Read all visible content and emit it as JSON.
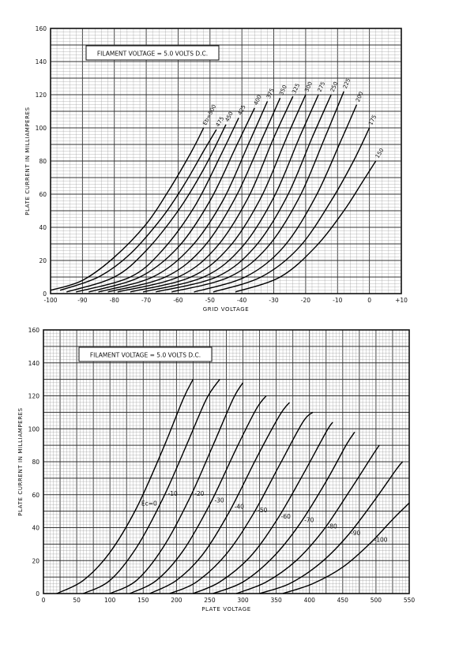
{
  "chart_data": [
    {
      "type": "line",
      "annotation": "FILAMENT VOLTAGE = 5.0 VOLTS D.C.",
      "xlabel": "GRID VOLTAGE",
      "ylabel": "PLATE CURRENT IN MILLIAMPERES",
      "xlim": [
        -100,
        10
      ],
      "ylim": [
        0,
        160
      ],
      "x_ticks": [
        "-100",
        "-90",
        "-80",
        "-70",
        "-60",
        "-50",
        "-40",
        "-30",
        "-20",
        "-10",
        "0",
        "+10"
      ],
      "y_ticks": [
        "0",
        "20",
        "40",
        "60",
        "80",
        "100",
        "120",
        "140",
        "160"
      ],
      "grid": true,
      "series": [
        {
          "name": "Eb=500",
          "points": [
            [
              -100,
              2
            ],
            [
              -90,
              8
            ],
            [
              -80,
              22
            ],
            [
              -70,
              42
            ],
            [
              -63,
              62
            ],
            [
              -56,
              85
            ],
            [
              -52,
              100
            ]
          ]
        },
        {
          "name": "475",
          "points": [
            [
              -97,
              2
            ],
            [
              -85,
              10
            ],
            [
              -75,
              24
            ],
            [
              -65,
              46
            ],
            [
              -58,
              66
            ],
            [
              -52,
              86
            ],
            [
              -48,
              99
            ]
          ]
        },
        {
          "name": "450",
          "points": [
            [
              -95,
              1
            ],
            [
              -80,
              10
            ],
            [
              -70,
              26
            ],
            [
              -60,
              50
            ],
            [
              -52,
              75
            ],
            [
              -45,
              102
            ]
          ]
        },
        {
          "name": "425",
          "points": [
            [
              -92,
              1
            ],
            [
              -75,
              10
            ],
            [
              -65,
              26
            ],
            [
              -55,
              52
            ],
            [
              -47,
              82
            ],
            [
              -41,
              106
            ]
          ]
        },
        {
          "name": "400",
          "points": [
            [
              -88,
              1
            ],
            [
              -72,
              10
            ],
            [
              -60,
              28
            ],
            [
              -50,
              56
            ],
            [
              -42,
              88
            ],
            [
              -36,
              112
            ]
          ]
        },
        {
          "name": "375",
          "points": [
            [
              -85,
              1
            ],
            [
              -68,
              10
            ],
            [
              -56,
              28
            ],
            [
              -46,
              56
            ],
            [
              -38,
              90
            ],
            [
              -32,
              116
            ]
          ]
        },
        {
          "name": "350",
          "points": [
            [
              -82,
              1
            ],
            [
              -64,
              10
            ],
            [
              -52,
              28
            ],
            [
              -42,
              58
            ],
            [
              -34,
              92
            ],
            [
              -28,
              118
            ]
          ]
        },
        {
          "name": "325",
          "points": [
            [
              -79,
              1
            ],
            [
              -60,
              10
            ],
            [
              -48,
              28
            ],
            [
              -38,
              58
            ],
            [
              -30,
              94
            ],
            [
              -24,
              119
            ]
          ]
        },
        {
          "name": "300",
          "points": [
            [
              -75,
              1
            ],
            [
              -56,
              10
            ],
            [
              -44,
              28
            ],
            [
              -34,
              58
            ],
            [
              -26,
              94
            ],
            [
              -20,
              120
            ]
          ]
        },
        {
          "name": "275",
          "points": [
            [
              -71,
              1
            ],
            [
              -52,
              10
            ],
            [
              -40,
              28
            ],
            [
              -30,
              58
            ],
            [
              -22,
              94
            ],
            [
              -16,
              120
            ]
          ]
        },
        {
          "name": "250",
          "points": [
            [
              -67,
              1
            ],
            [
              -48,
              10
            ],
            [
              -36,
              28
            ],
            [
              -26,
              58
            ],
            [
              -18,
              94
            ],
            [
              -12,
              120
            ]
          ]
        },
        {
          "name": "225",
          "points": [
            [
              -62,
              1
            ],
            [
              -44,
              10
            ],
            [
              -32,
              28
            ],
            [
              -22,
              58
            ],
            [
              -14,
              94
            ],
            [
              -8,
              122
            ]
          ]
        },
        {
          "name": "200",
          "points": [
            [
              -55,
              1
            ],
            [
              -39,
              10
            ],
            [
              -27,
              28
            ],
            [
              -17,
              58
            ],
            [
              -9,
              92
            ],
            [
              -4,
              114
            ]
          ]
        },
        {
          "name": "175",
          "points": [
            [
              -49,
              1
            ],
            [
              -34,
              10
            ],
            [
              -22,
              28
            ],
            [
              -12,
              56
            ],
            [
              -5,
              80
            ],
            [
              0,
              100
            ]
          ]
        },
        {
          "name": "150",
          "points": [
            [
              -42,
              1
            ],
            [
              -28,
              10
            ],
            [
              -17,
              28
            ],
            [
              -8,
              50
            ],
            [
              -2,
              68
            ],
            [
              2,
              80
            ]
          ]
        }
      ]
    },
    {
      "type": "line",
      "annotation": "FILAMENT VOLTAGE = 5.0 VOLTS D.C.",
      "xlabel": "PLATE VOLTAGE",
      "ylabel": "PLATE CURRENT IN MILLIAMPERES",
      "xlim": [
        0,
        550
      ],
      "ylim": [
        0,
        160
      ],
      "x_ticks": [
        "0",
        "50",
        "100",
        "150",
        "200",
        "250",
        "300",
        "350",
        "400",
        "450",
        "500",
        "550"
      ],
      "y_ticks": [
        "0",
        "20",
        "40",
        "60",
        "80",
        "100",
        "120",
        "140",
        "160"
      ],
      "grid": true,
      "series": [
        {
          "name": "Ec=0",
          "points": [
            [
              20,
              0
            ],
            [
              60,
              8
            ],
            [
              100,
              25
            ],
            [
              140,
              52
            ],
            [
              180,
              88
            ],
            [
              210,
              118
            ],
            [
              225,
              130
            ]
          ]
        },
        {
          "name": "-10",
          "points": [
            [
              60,
              0
            ],
            [
              100,
              8
            ],
            [
              140,
              28
            ],
            [
              180,
              58
            ],
            [
              215,
              90
            ],
            [
              245,
              118
            ],
            [
              265,
              130
            ]
          ]
        },
        {
          "name": "-20",
          "points": [
            [
              100,
              0
            ],
            [
              140,
              8
            ],
            [
              180,
              28
            ],
            [
              220,
              58
            ],
            [
              255,
              90
            ],
            [
              285,
              118
            ],
            [
              300,
              128
            ]
          ]
        },
        {
          "name": "-30",
          "points": [
            [
              130,
              0
            ],
            [
              170,
              8
            ],
            [
              210,
              26
            ],
            [
              250,
              54
            ],
            [
              290,
              88
            ],
            [
              320,
              112
            ],
            [
              335,
              120
            ]
          ]
        },
        {
          "name": "-40",
          "points": [
            [
              160,
              0
            ],
            [
              200,
              8
            ],
            [
              240,
              24
            ],
            [
              280,
              50
            ],
            [
              320,
              82
            ],
            [
              355,
              108
            ],
            [
              370,
              116
            ]
          ]
        },
        {
          "name": "-50",
          "points": [
            [
              190,
              0
            ],
            [
              230,
              7
            ],
            [
              275,
              24
            ],
            [
              315,
              48
            ],
            [
              355,
              78
            ],
            [
              390,
              104
            ],
            [
              405,
              110
            ]
          ]
        },
        {
          "name": "-60",
          "points": [
            [
              225,
              0
            ],
            [
              265,
              7
            ],
            [
              310,
              22
            ],
            [
              350,
              44
            ],
            [
              390,
              72
            ],
            [
              425,
              98
            ],
            [
              435,
              104
            ]
          ]
        },
        {
          "name": "-70",
          "points": [
            [
              255,
              0
            ],
            [
              300,
              7
            ],
            [
              345,
              22
            ],
            [
              385,
              42
            ],
            [
              425,
              68
            ],
            [
              455,
              90
            ],
            [
              468,
              98
            ]
          ]
        },
        {
          "name": "-80",
          "points": [
            [
              290,
              0
            ],
            [
              335,
              7
            ],
            [
              380,
              20
            ],
            [
              420,
              38
            ],
            [
              460,
              62
            ],
            [
              495,
              84
            ],
            [
              505,
              90
            ]
          ]
        },
        {
          "name": "-90",
          "points": [
            [
              325,
              0
            ],
            [
              370,
              6
            ],
            [
              415,
              18
            ],
            [
              455,
              34
            ],
            [
              495,
              55
            ],
            [
              530,
              75
            ],
            [
              540,
              80
            ]
          ]
        },
        {
          "name": "-100",
          "points": [
            [
              360,
              0
            ],
            [
              405,
              6
            ],
            [
              450,
              16
            ],
            [
              490,
              30
            ],
            [
              525,
              45
            ],
            [
              550,
              55
            ]
          ]
        }
      ]
    }
  ]
}
